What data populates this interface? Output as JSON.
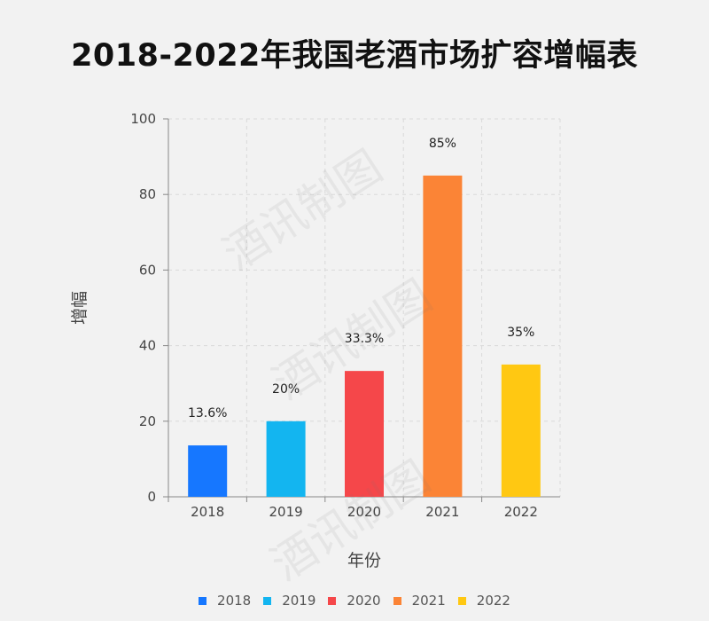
{
  "chart_data": {
    "type": "bar",
    "title": "2018-2022年我国老酒市场扩容增幅表",
    "xlabel": "年份",
    "ylabel": "增幅",
    "categories": [
      "2018",
      "2019",
      "2020",
      "2021",
      "2022"
    ],
    "values": [
      13.6,
      20,
      33.3,
      85,
      35
    ],
    "data_labels": [
      "13.6%",
      "20%",
      "33.3%",
      "85%",
      "35%"
    ],
    "colors": [
      "#1677ff",
      "#13b5f0",
      "#f5474a",
      "#fb8436",
      "#ffc812"
    ],
    "ylim": [
      0,
      100
    ],
    "yticks": [
      0,
      20,
      40,
      60,
      80,
      100
    ],
    "grid": true,
    "legend": {
      "position": "bottom",
      "entries": [
        "2018",
        "2019",
        "2020",
        "2021",
        "2022"
      ]
    }
  },
  "watermark": {
    "text": "酒讯制图"
  }
}
